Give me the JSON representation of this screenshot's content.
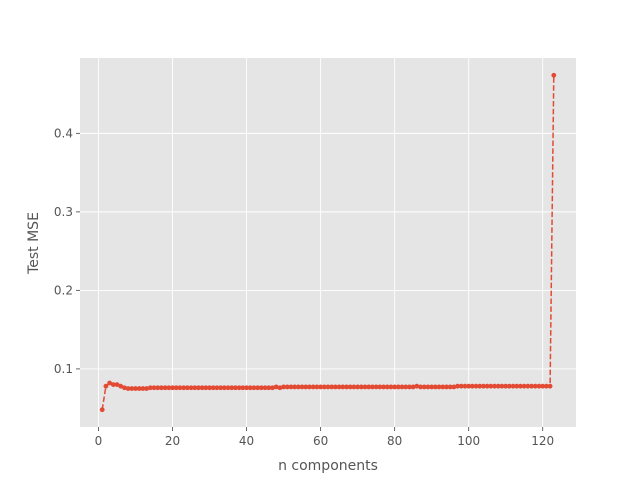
{
  "chart_data": {
    "type": "line",
    "title": "",
    "xlabel": "n components",
    "ylabel": "Test MSE",
    "xlim": [
      -5,
      129
    ],
    "ylim": [
      0.026,
      0.496
    ],
    "grid": true,
    "background": "#e5e5e5",
    "grid_color": "#ffffff",
    "series_color": "#e24a33",
    "line_style": "dashed",
    "marker": "circle",
    "xticks": [
      0,
      20,
      40,
      60,
      80,
      100,
      120
    ],
    "yticks": [
      0.1,
      0.2,
      0.3,
      0.4
    ],
    "x_tick_labels": [
      "0",
      "20",
      "40",
      "60",
      "80",
      "100",
      "120"
    ],
    "y_tick_labels": [
      "0.1",
      "0.2",
      "0.3",
      "0.4"
    ],
    "series": [
      {
        "x": [
          1,
          2,
          3,
          4,
          5,
          6,
          7,
          8,
          9,
          10,
          11,
          12,
          13,
          14,
          15,
          16,
          17,
          18,
          19,
          20,
          21,
          22,
          23,
          24,
          25,
          26,
          27,
          28,
          29,
          30,
          31,
          32,
          33,
          34,
          35,
          36,
          37,
          38,
          39,
          40,
          41,
          42,
          43,
          44,
          45,
          46,
          47,
          48,
          49,
          50,
          51,
          52,
          53,
          54,
          55,
          56,
          57,
          58,
          59,
          60,
          61,
          62,
          63,
          64,
          65,
          66,
          67,
          68,
          69,
          70,
          71,
          72,
          73,
          74,
          75,
          76,
          77,
          78,
          79,
          80,
          81,
          82,
          83,
          84,
          85,
          86,
          87,
          88,
          89,
          90,
          91,
          92,
          93,
          94,
          95,
          96,
          97,
          98,
          99,
          100,
          101,
          102,
          103,
          104,
          105,
          106,
          107,
          108,
          109,
          110,
          111,
          112,
          113,
          114,
          115,
          116,
          117,
          118,
          119,
          120,
          121,
          122,
          123
        ],
        "values": [
          0.048,
          0.078,
          0.082,
          0.08,
          0.08,
          0.078,
          0.076,
          0.075,
          0.075,
          0.075,
          0.075,
          0.075,
          0.075,
          0.076,
          0.076,
          0.076,
          0.076,
          0.076,
          0.076,
          0.076,
          0.076,
          0.076,
          0.076,
          0.076,
          0.076,
          0.076,
          0.076,
          0.076,
          0.076,
          0.076,
          0.076,
          0.076,
          0.076,
          0.076,
          0.076,
          0.076,
          0.076,
          0.076,
          0.076,
          0.076,
          0.076,
          0.076,
          0.076,
          0.076,
          0.076,
          0.076,
          0.076,
          0.077,
          0.076,
          0.077,
          0.077,
          0.077,
          0.077,
          0.077,
          0.077,
          0.077,
          0.077,
          0.077,
          0.077,
          0.077,
          0.077,
          0.077,
          0.077,
          0.077,
          0.077,
          0.077,
          0.077,
          0.077,
          0.077,
          0.077,
          0.077,
          0.077,
          0.077,
          0.077,
          0.077,
          0.077,
          0.077,
          0.077,
          0.077,
          0.077,
          0.077,
          0.077,
          0.077,
          0.077,
          0.077,
          0.078,
          0.077,
          0.077,
          0.077,
          0.077,
          0.077,
          0.077,
          0.077,
          0.077,
          0.077,
          0.077,
          0.078,
          0.078,
          0.078,
          0.078,
          0.078,
          0.078,
          0.078,
          0.078,
          0.078,
          0.078,
          0.078,
          0.078,
          0.078,
          0.078,
          0.078,
          0.078,
          0.078,
          0.078,
          0.078,
          0.078,
          0.078,
          0.078,
          0.078,
          0.078,
          0.078,
          0.078,
          0.474
        ]
      }
    ]
  }
}
